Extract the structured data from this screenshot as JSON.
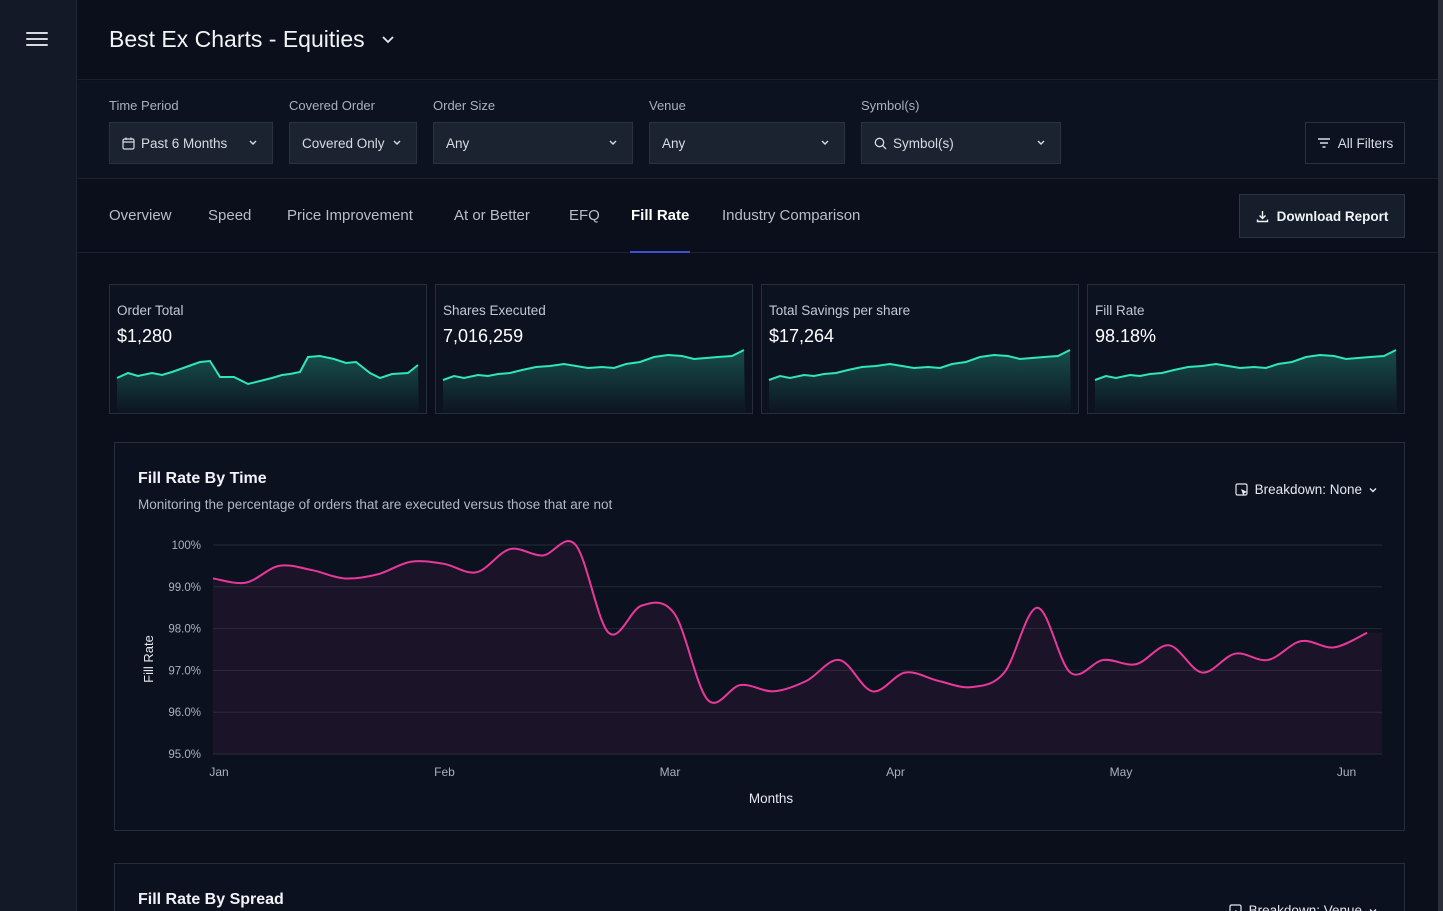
{
  "app": {
    "title": "Best Ex Charts - Equities"
  },
  "filters": {
    "time_period": {
      "label": "Time Period",
      "value": "Past 6 Months"
    },
    "covered_order": {
      "label": "Covered Order",
      "value": "Covered Only"
    },
    "order_size": {
      "label": "Order Size",
      "value": "Any"
    },
    "venue": {
      "label": "Venue",
      "value": "Any"
    },
    "symbols": {
      "label": "Symbol(s)",
      "placeholder": "Symbol(s)"
    },
    "all_filters": "All Filters"
  },
  "tabs": [
    "Overview",
    "Speed",
    "Price Improvement",
    "At or Better",
    "EFQ",
    "Fill Rate",
    "Industry Comparison"
  ],
  "active_tab": "Fill Rate",
  "download_label": "Download Report",
  "kpis": [
    {
      "label": "Order Total",
      "value": "$1,280"
    },
    {
      "label": "Shares Executed",
      "value": "7,016,259"
    },
    {
      "label": "Total Savings per share",
      "value": "$17,264"
    },
    {
      "label": "Fill Rate",
      "value": "98.18%"
    }
  ],
  "panels": {
    "fill_rate_time": {
      "title": "Fill Rate By Time",
      "subtitle": "Monitoring the percentage of orders that are executed versus those that are not",
      "breakdown": "Breakdown: None"
    },
    "fill_rate_spread": {
      "title": "Fill Rate By Spread",
      "breakdown": "Breakdown: Venue"
    }
  },
  "colors": {
    "accent_green": "#2ee6b8",
    "accent_pink": "#e8399a",
    "tab_underline": "#3b4fd8"
  },
  "chart_data": {
    "type": "line",
    "title": "Fill Rate By Time",
    "xlabel": "Months",
    "ylabel": "Fill Rate",
    "x_ticks": [
      "Jan",
      "Feb",
      "Mar",
      "Apr",
      "May",
      "Jun"
    ],
    "y_ticks": [
      "100%",
      "99.0%",
      "98.0%",
      "97.0%",
      "96.0%",
      "95.0%"
    ],
    "ylim": [
      95,
      100
    ],
    "grid": true,
    "series": [
      {
        "values": [
          99.2,
          99.1,
          99.5,
          99.4,
          99.2,
          99.3,
          99.6,
          99.55,
          99.35,
          99.9,
          99.75,
          100.0,
          97.9,
          98.55,
          98.35,
          96.3,
          96.65,
          96.5,
          96.75,
          97.25,
          96.5,
          96.95,
          96.75,
          96.6,
          96.95,
          98.5,
          96.95,
          97.25,
          97.15,
          97.6,
          96.95,
          97.4,
          97.25,
          97.7,
          97.55,
          97.9
        ]
      }
    ]
  }
}
